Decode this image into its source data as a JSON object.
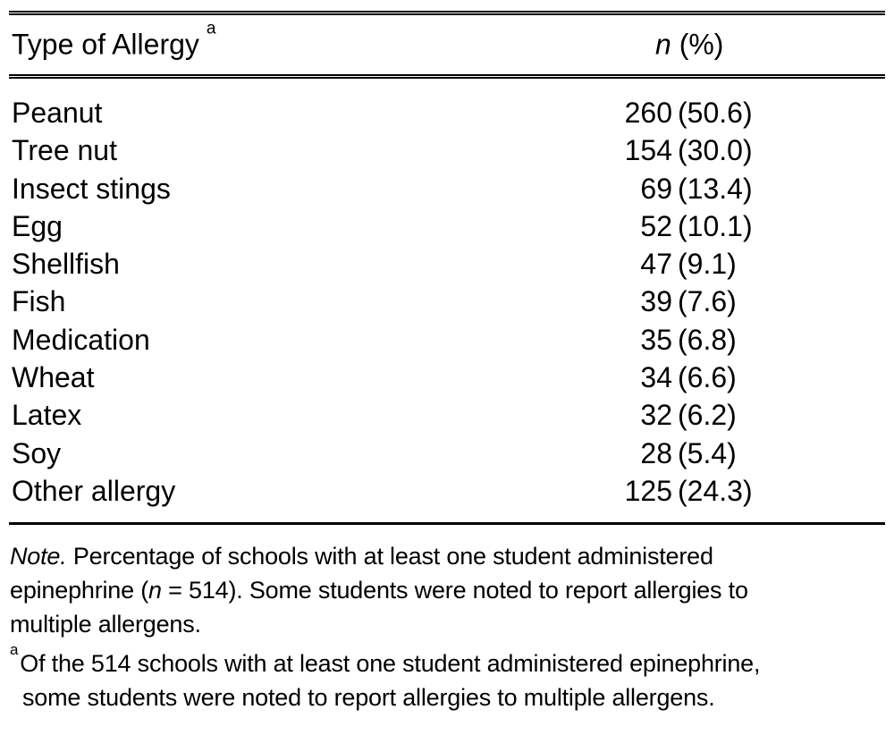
{
  "table": {
    "header": {
      "col1": "Type of Allergy",
      "col1_footnote_marker": "a",
      "col2_n": "n",
      "col2_rest": " (%)"
    },
    "rows": [
      {
        "label": "Peanut",
        "n": "260",
        "pct": "(50.6)"
      },
      {
        "label": "Tree nut",
        "n": "154",
        "pct": "(30.0)"
      },
      {
        "label": "Insect stings",
        "n": "69",
        "pct": "(13.4)"
      },
      {
        "label": "Egg",
        "n": "52",
        "pct": "(10.1)"
      },
      {
        "label": "Shellfish",
        "n": "47",
        "pct": "(9.1)"
      },
      {
        "label": "Fish",
        "n": "39",
        "pct": "(7.6)"
      },
      {
        "label": "Medication",
        "n": "35",
        "pct": "(6.8)"
      },
      {
        "label": "Wheat",
        "n": "34",
        "pct": "(6.6)"
      },
      {
        "label": "Latex",
        "n": "32",
        "pct": "(6.2)"
      },
      {
        "label": "Soy",
        "n": "28",
        "pct": "(5.4)"
      },
      {
        "label": "Other allergy",
        "n": "125",
        "pct": "(24.3)"
      }
    ]
  },
  "notes": {
    "note_label": "Note.",
    "note_line1_rest": " Percentage of schools with at least one student administered",
    "line2_pre": "epinephrine (",
    "line2_n": "n",
    "line2_post": " = 514). Some students were noted to report allergies to",
    "line3": "multiple allergens.",
    "fn_marker": "a",
    "fn_line1": "Of the 514 schools with at least one student administered epinephrine,",
    "fn_line2": "some students were noted to report allergies to multiple allergens."
  },
  "colors": {
    "text": "#000000",
    "rule": "#000000",
    "background": "#ffffff"
  },
  "chart_data": {
    "type": "table",
    "columns": [
      "Type of Allergy",
      "n (%)"
    ],
    "rows": [
      [
        "Peanut",
        "260 (50.6)"
      ],
      [
        "Tree nut",
        "154 (30.0)"
      ],
      [
        "Insect stings",
        "69 (13.4)"
      ],
      [
        "Egg",
        "52 (10.1)"
      ],
      [
        "Shellfish",
        "47 (9.1)"
      ],
      [
        "Fish",
        "39 (7.6)"
      ],
      [
        "Medication",
        "35 (6.8)"
      ],
      [
        "Wheat",
        "34 (6.6)"
      ],
      [
        "Latex",
        "32 (6.2)"
      ],
      [
        "Soy",
        "28 (5.4)"
      ],
      [
        "Other allergy",
        "125 (24.3)"
      ]
    ],
    "sample_size": 514
  }
}
